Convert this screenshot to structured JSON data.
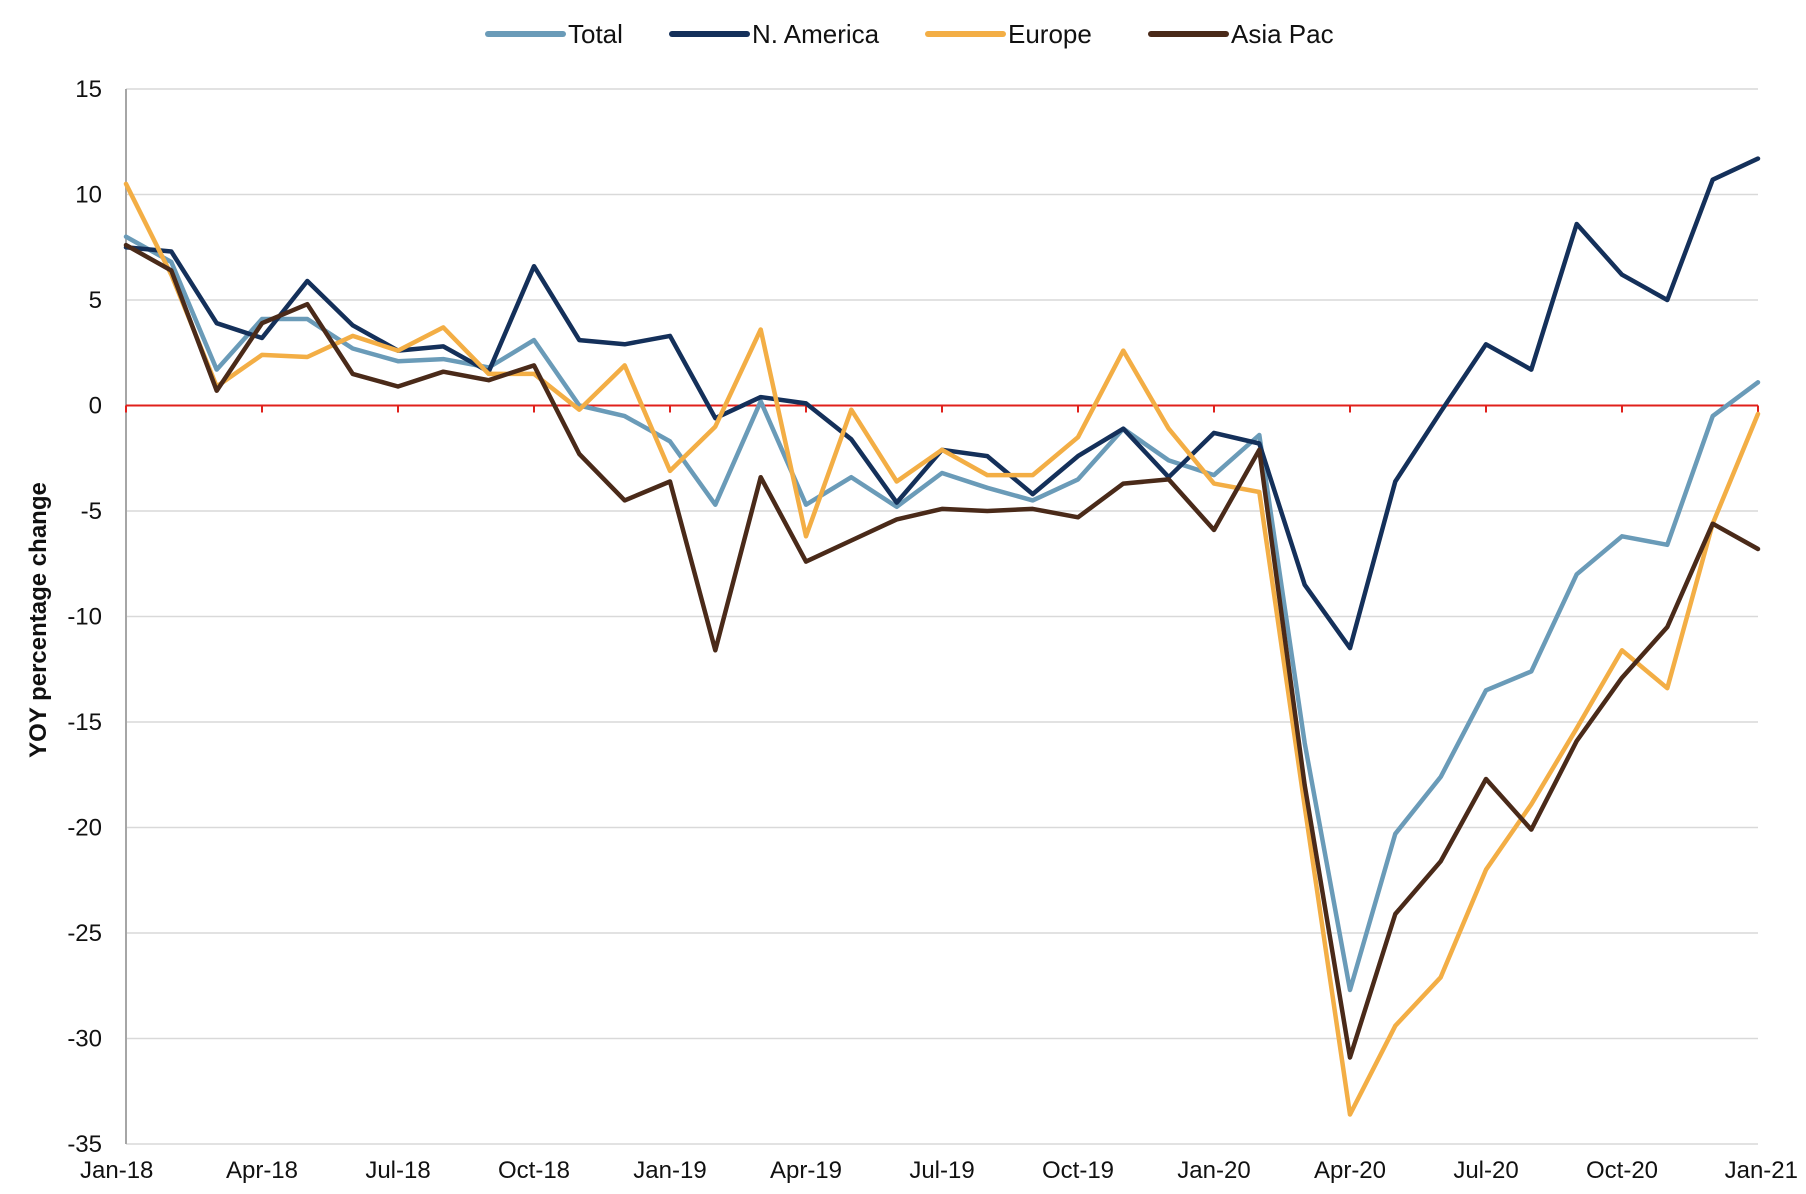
{
  "chart_data": {
    "type": "line",
    "title": "",
    "xlabel": "",
    "ylabel": "YOY percentage change",
    "ylim": [
      -35,
      15
    ],
    "y_ticks": [
      "15",
      "10",
      "5",
      "0",
      "-5",
      "-10",
      "-15",
      "-20",
      "-25",
      "-30",
      "-35"
    ],
    "y_tick_values": [
      15,
      10,
      5,
      0,
      -5,
      -10,
      -15,
      -20,
      -25,
      -30,
      -35
    ],
    "x_tick_labels": [
      "Jan-18",
      "Apr-18",
      "Jul-18",
      "Oct-18",
      "Jan-19",
      "Apr-19",
      "Jul-19",
      "Oct-19",
      "Jan-20",
      "Apr-20",
      "Jul-20",
      "Oct-20",
      "Jan-21"
    ],
    "categories": [
      "Jan-18",
      "Feb-18",
      "Mar-18",
      "Apr-18",
      "May-18",
      "Jun-18",
      "Jul-18",
      "Aug-18",
      "Sep-18",
      "Oct-18",
      "Nov-18",
      "Dec-18",
      "Jan-19",
      "Feb-19",
      "Mar-19",
      "Apr-19",
      "May-19",
      "Jun-19",
      "Jul-19",
      "Aug-19",
      "Sep-19",
      "Oct-19",
      "Nov-19",
      "Dec-19",
      "Jan-20",
      "Feb-20",
      "Mar-20",
      "Apr-20",
      "May-20",
      "Jun-20",
      "Jul-20",
      "Aug-20",
      "Sep-20",
      "Oct-20",
      "Nov-20",
      "Dec-20",
      "Jan-21"
    ],
    "grid": true,
    "zero_line_color": "#e0201b",
    "legend_position": "top-center",
    "series": [
      {
        "name": "Total",
        "color": "#6a9bb8",
        "values": [
          8.0,
          6.8,
          1.7,
          4.1,
          4.1,
          2.7,
          2.1,
          2.2,
          1.8,
          3.1,
          0,
          -0.5,
          -1.7,
          -4.7,
          0.2,
          -4.7,
          -3.4,
          -4.8,
          -3.2,
          -3.9,
          -4.5,
          -3.5,
          -1.1,
          -2.6,
          -3.3,
          -1.4,
          -16.0,
          -27.7,
          -20.3,
          -17.6,
          -13.5,
          -12.6,
          -8.0,
          -6.2,
          -6.6,
          -0.5,
          1.1
        ]
      },
      {
        "name": "N. America",
        "color": "#14305a",
        "values": [
          7.5,
          7.3,
          3.9,
          3.2,
          5.9,
          3.8,
          2.6,
          2.8,
          1.6,
          6.6,
          3.1,
          2.9,
          3.3,
          -0.6,
          0.4,
          0.1,
          -1.6,
          -4.6,
          -2.1,
          -2.4,
          -4.2,
          -2.4,
          -1.1,
          -3.4,
          -1.3,
          -1.8,
          -8.5,
          -11.5,
          -3.6,
          -0.3,
          2.9,
          1.7,
          8.6,
          6.2,
          5.0,
          10.7,
          11.7
        ]
      },
      {
        "name": "Europe",
        "color": "#f3ae45",
        "values": [
          10.5,
          6.2,
          0.9,
          2.4,
          2.3,
          3.3,
          2.6,
          3.7,
          1.5,
          1.5,
          -0.2,
          1.9,
          -3.1,
          -1.0,
          3.6,
          -6.2,
          -0.2,
          -3.6,
          -2.1,
          -3.3,
          -3.3,
          -1.5,
          2.6,
          -1.1,
          -3.7,
          -4.1,
          -19.0,
          -33.6,
          -29.4,
          -27.1,
          -22.0,
          -18.9,
          -15.3,
          -11.6,
          -13.4,
          -5.6,
          -0.4
        ]
      },
      {
        "name": "Asia Pac",
        "color": "#4a2a19",
        "values": [
          7.6,
          6.4,
          0.7,
          3.9,
          4.8,
          1.5,
          0.9,
          1.6,
          1.2,
          1.9,
          -2.3,
          -4.5,
          -3.6,
          -11.6,
          -3.4,
          -7.4,
          -6.4,
          -5.4,
          -4.9,
          -5.0,
          -4.9,
          -5.3,
          -3.7,
          -3.5,
          -5.9,
          -2.1,
          -18.0,
          -30.9,
          -24.1,
          -21.6,
          -17.7,
          -20.1,
          -15.9,
          -12.9,
          -10.5,
          -5.6,
          -6.8
        ]
      }
    ]
  }
}
